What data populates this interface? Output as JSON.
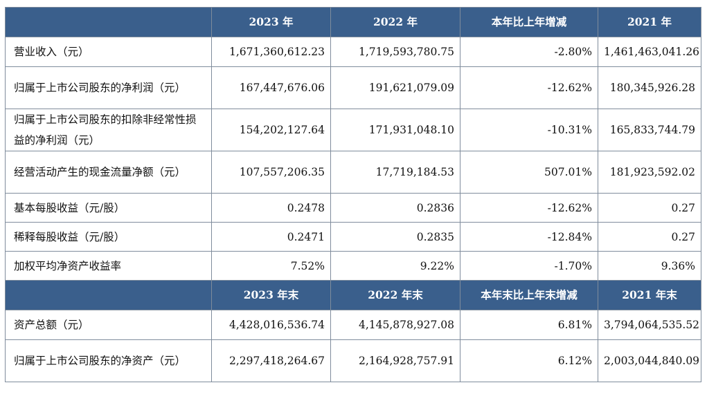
{
  "header": {
    "blank": "",
    "cols": [
      "2023 年",
      "2022 年",
      "本年比上年增减",
      "2021 年"
    ]
  },
  "rows": [
    {
      "label": "营业收入（元）",
      "values": [
        "1,671,360,612.23",
        "1,719,593,780.75",
        "-2.80%",
        "1,461,463,041.26"
      ]
    },
    {
      "label": "归属于上市公司股东的净利润（元）",
      "values": [
        "167,447,676.06",
        "191,621,079.09",
        "-12.62%",
        "180,345,926.28"
      ]
    },
    {
      "label": "归属于上市公司股东的扣除非经常性损益的净利润（元）",
      "values": [
        "154,202,127.64",
        "171,931,048.10",
        "-10.31%",
        "165,833,744.79"
      ]
    },
    {
      "label": "经营活动产生的现金流量净额（元）",
      "values": [
        "107,557,206.35",
        "17,719,184.53",
        "507.01%",
        "181,923,592.02"
      ]
    },
    {
      "label": "基本每股收益（元/股）",
      "values": [
        "0.2478",
        "0.2836",
        "-12.62%",
        "0.27"
      ]
    },
    {
      "label": "稀释每股收益（元/股）",
      "values": [
        "0.2471",
        "0.2835",
        "-12.84%",
        "0.27"
      ]
    },
    {
      "label": "加权平均净资产收益率",
      "values": [
        "7.52%",
        "9.22%",
        "-1.70%",
        "9.36%"
      ]
    }
  ],
  "subheader": {
    "blank": "",
    "cols": [
      "2023 年末",
      "2022 年末",
      "本年末比上年末增减",
      "2021 年末"
    ]
  },
  "rows2": [
    {
      "label": "资产总额（元）",
      "values": [
        "4,428,016,536.74",
        "4,145,878,927.08",
        "6.81%",
        "3,794,064,535.52"
      ]
    },
    {
      "label": "归属于上市公司股东的净资产（元）",
      "values": [
        "2,297,418,264.67",
        "2,164,928,757.91",
        "6.12%",
        "2,003,044,840.09"
      ]
    }
  ]
}
